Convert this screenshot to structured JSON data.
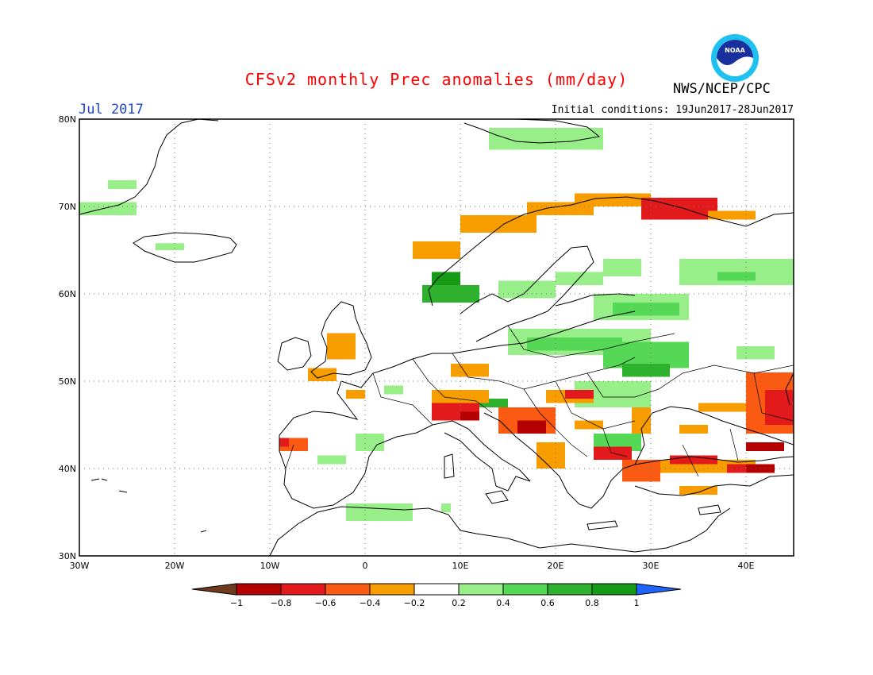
{
  "header": {
    "title": "CFSv2 monthly Prec anomalies (mm/day)",
    "title_color": "#ff0000",
    "month": "Jul 2017",
    "month_color": "#1c45d6",
    "agency": "NWS/NCEP/CPC",
    "initial_conditions": "Initial conditions: 19Jun2017-28Jun2017",
    "logo_text": "NOAA"
  },
  "map": {
    "region": "Europe",
    "lon_range": [
      -30,
      45
    ],
    "lat_range": [
      30,
      80
    ],
    "lat_ticks": [
      "30N",
      "40N",
      "50N",
      "60N",
      "70N",
      "80N"
    ],
    "lon_ticks": [
      "30W",
      "20W",
      "10W",
      "0",
      "10E",
      "20E",
      "30E",
      "40E"
    ],
    "grid": "dotted",
    "anomaly_cells": [
      {
        "lon": -30,
        "lat": 69,
        "w": 6,
        "h": 1.5,
        "v": 0.3
      },
      {
        "lon": -27,
        "lat": 72,
        "w": 3,
        "h": 1,
        "v": 0.3
      },
      {
        "lon": -22,
        "lat": 65,
        "w": 3,
        "h": 0.8,
        "v": 0.3
      },
      {
        "lon": 13,
        "lat": 76.5,
        "w": 12,
        "h": 2.5,
        "v": 0.3
      },
      {
        "lon": 7,
        "lat": 60.5,
        "w": 3,
        "h": 2,
        "v": 1.0
      },
      {
        "lon": 6,
        "lat": 59,
        "w": 6,
        "h": 2,
        "v": 0.7
      },
      {
        "lon": 14,
        "lat": 59.5,
        "w": 6,
        "h": 2,
        "v": 0.3
      },
      {
        "lon": 20,
        "lat": 61,
        "w": 5,
        "h": 1.5,
        "v": 0.3
      },
      {
        "lon": 25,
        "lat": 62,
        "w": 4,
        "h": 2,
        "v": 0.3
      },
      {
        "lon": 33,
        "lat": 61,
        "w": 13,
        "h": 3,
        "v": 0.3
      },
      {
        "lon": 37,
        "lat": 61.5,
        "w": 4,
        "h": 1,
        "v": 0.5
      },
      {
        "lon": 24,
        "lat": 57,
        "w": 10,
        "h": 3,
        "v": 0.3
      },
      {
        "lon": 26,
        "lat": 57.5,
        "w": 7,
        "h": 1.5,
        "v": 0.6
      },
      {
        "lon": 15,
        "lat": 53,
        "w": 15,
        "h": 3,
        "v": 0.3
      },
      {
        "lon": 17,
        "lat": 53.5,
        "w": 10,
        "h": 1.5,
        "v": 0.6
      },
      {
        "lon": 25,
        "lat": 51.5,
        "w": 9,
        "h": 3,
        "v": 0.5
      },
      {
        "lon": 27,
        "lat": 50.5,
        "w": 5,
        "h": 1.5,
        "v": 0.7
      },
      {
        "lon": 22,
        "lat": 47,
        "w": 8,
        "h": 3,
        "v": 0.3
      },
      {
        "lon": 24,
        "lat": 42,
        "w": 5,
        "h": 2,
        "v": 0.5
      },
      {
        "lon": 39,
        "lat": 52.5,
        "w": 4,
        "h": 1.5,
        "v": 0.3
      },
      {
        "lon": 2,
        "lat": 48.5,
        "w": 2,
        "h": 1,
        "v": 0.3
      },
      {
        "lon": 12,
        "lat": 47,
        "w": 3,
        "h": 1,
        "v": 0.7
      },
      {
        "lon": -1,
        "lat": 42,
        "w": 3,
        "h": 2,
        "v": 0.3
      },
      {
        "lon": -5,
        "lat": 40.5,
        "w": 3,
        "h": 1,
        "v": 0.3
      },
      {
        "lon": -2,
        "lat": 34,
        "w": 7,
        "h": 2,
        "v": 0.3
      },
      {
        "lon": 8,
        "lat": 35,
        "w": 1,
        "h": 1,
        "v": 0.3
      },
      {
        "lon": -4,
        "lat": 52.5,
        "w": 3,
        "h": 3,
        "v": -0.3
      },
      {
        "lon": -6,
        "lat": 50,
        "w": 3,
        "h": 1.5,
        "v": -0.3
      },
      {
        "lon": 9,
        "lat": 50.5,
        "w": 4,
        "h": 1.5,
        "v": -0.3
      },
      {
        "lon": -2,
        "lat": 48,
        "w": 2,
        "h": 1,
        "v": -0.3
      },
      {
        "lon": 7,
        "lat": 47.5,
        "w": 6,
        "h": 1.5,
        "v": -0.3
      },
      {
        "lon": 7,
        "lat": 45.5,
        "w": 5,
        "h": 2,
        "v": -0.6
      },
      {
        "lon": 10,
        "lat": 45.5,
        "w": 2,
        "h": 1,
        "v": -0.8
      },
      {
        "lon": 14,
        "lat": 44,
        "w": 6,
        "h": 3,
        "v": -0.5
      },
      {
        "lon": 16,
        "lat": 44,
        "w": 3,
        "h": 1.5,
        "v": -0.8
      },
      {
        "lon": 18,
        "lat": 40,
        "w": 3,
        "h": 3,
        "v": -0.3
      },
      {
        "lon": 19,
        "lat": 47.5,
        "w": 5,
        "h": 1.5,
        "v": -0.3
      },
      {
        "lon": 21,
        "lat": 48,
        "w": 3,
        "h": 1,
        "v": -0.6
      },
      {
        "lon": 22,
        "lat": 44.5,
        "w": 3,
        "h": 1,
        "v": -0.3
      },
      {
        "lon": 24,
        "lat": 41,
        "w": 4,
        "h": 1.5,
        "v": -0.6
      },
      {
        "lon": 28,
        "lat": 44,
        "w": 2,
        "h": 3,
        "v": -0.3
      },
      {
        "lon": 27,
        "lat": 38.5,
        "w": 4,
        "h": 2.5,
        "v": -0.5
      },
      {
        "lon": 31,
        "lat": 39.5,
        "w": 10,
        "h": 1.5,
        "v": -0.3
      },
      {
        "lon": 32,
        "lat": 40.5,
        "w": 5,
        "h": 1,
        "v": -0.7
      },
      {
        "lon": 38,
        "lat": 39.5,
        "w": 5,
        "h": 1,
        "v": -0.6
      },
      {
        "lon": 40,
        "lat": 39.5,
        "w": 3,
        "h": 1,
        "v": -0.8
      },
      {
        "lon": 40,
        "lat": 44,
        "w": 5,
        "h": 7,
        "v": -0.5
      },
      {
        "lon": 42,
        "lat": 45,
        "w": 3,
        "h": 4,
        "v": -0.6
      },
      {
        "lon": 40,
        "lat": 42,
        "w": 4,
        "h": 1,
        "v": -0.8
      },
      {
        "lon": 35,
        "lat": 46.5,
        "w": 5,
        "h": 1,
        "v": -0.3
      },
      {
        "lon": 33,
        "lat": 44,
        "w": 3,
        "h": 1,
        "v": -0.3
      },
      {
        "lon": 33,
        "lat": 37,
        "w": 4,
        "h": 1,
        "v": -0.3
      },
      {
        "lon": -9,
        "lat": 42,
        "w": 3,
        "h": 1.5,
        "v": -0.4
      },
      {
        "lon": -9,
        "lat": 42.5,
        "w": 1,
        "h": 1,
        "v": -0.7
      },
      {
        "lon": 5,
        "lat": 64,
        "w": 5,
        "h": 2,
        "v": -0.3
      },
      {
        "lon": 10,
        "lat": 67,
        "w": 8,
        "h": 2,
        "v": -0.3
      },
      {
        "lon": 17,
        "lat": 69,
        "w": 7,
        "h": 1.5,
        "v": -0.3
      },
      {
        "lon": 22,
        "lat": 70,
        "w": 8,
        "h": 1.5,
        "v": -0.3
      },
      {
        "lon": 29,
        "lat": 68.5,
        "w": 8,
        "h": 2.5,
        "v": -0.6
      },
      {
        "lon": 36,
        "lat": 68.5,
        "w": 5,
        "h": 1,
        "v": -0.3
      }
    ]
  },
  "colorbar": {
    "labels": [
      "-1",
      "-0.8",
      "-0.6",
      "-0.4",
      "-0.2",
      "0.2",
      "0.4",
      "0.6",
      "0.8",
      "1"
    ],
    "colors": [
      "#6e3c1d",
      "#b40000",
      "#e31a1c",
      "#fb5a12",
      "#f79d00",
      "#ffffff",
      "#98ee88",
      "#55d855",
      "#2eb22e",
      "#169b16",
      "#1f64ff"
    ]
  }
}
